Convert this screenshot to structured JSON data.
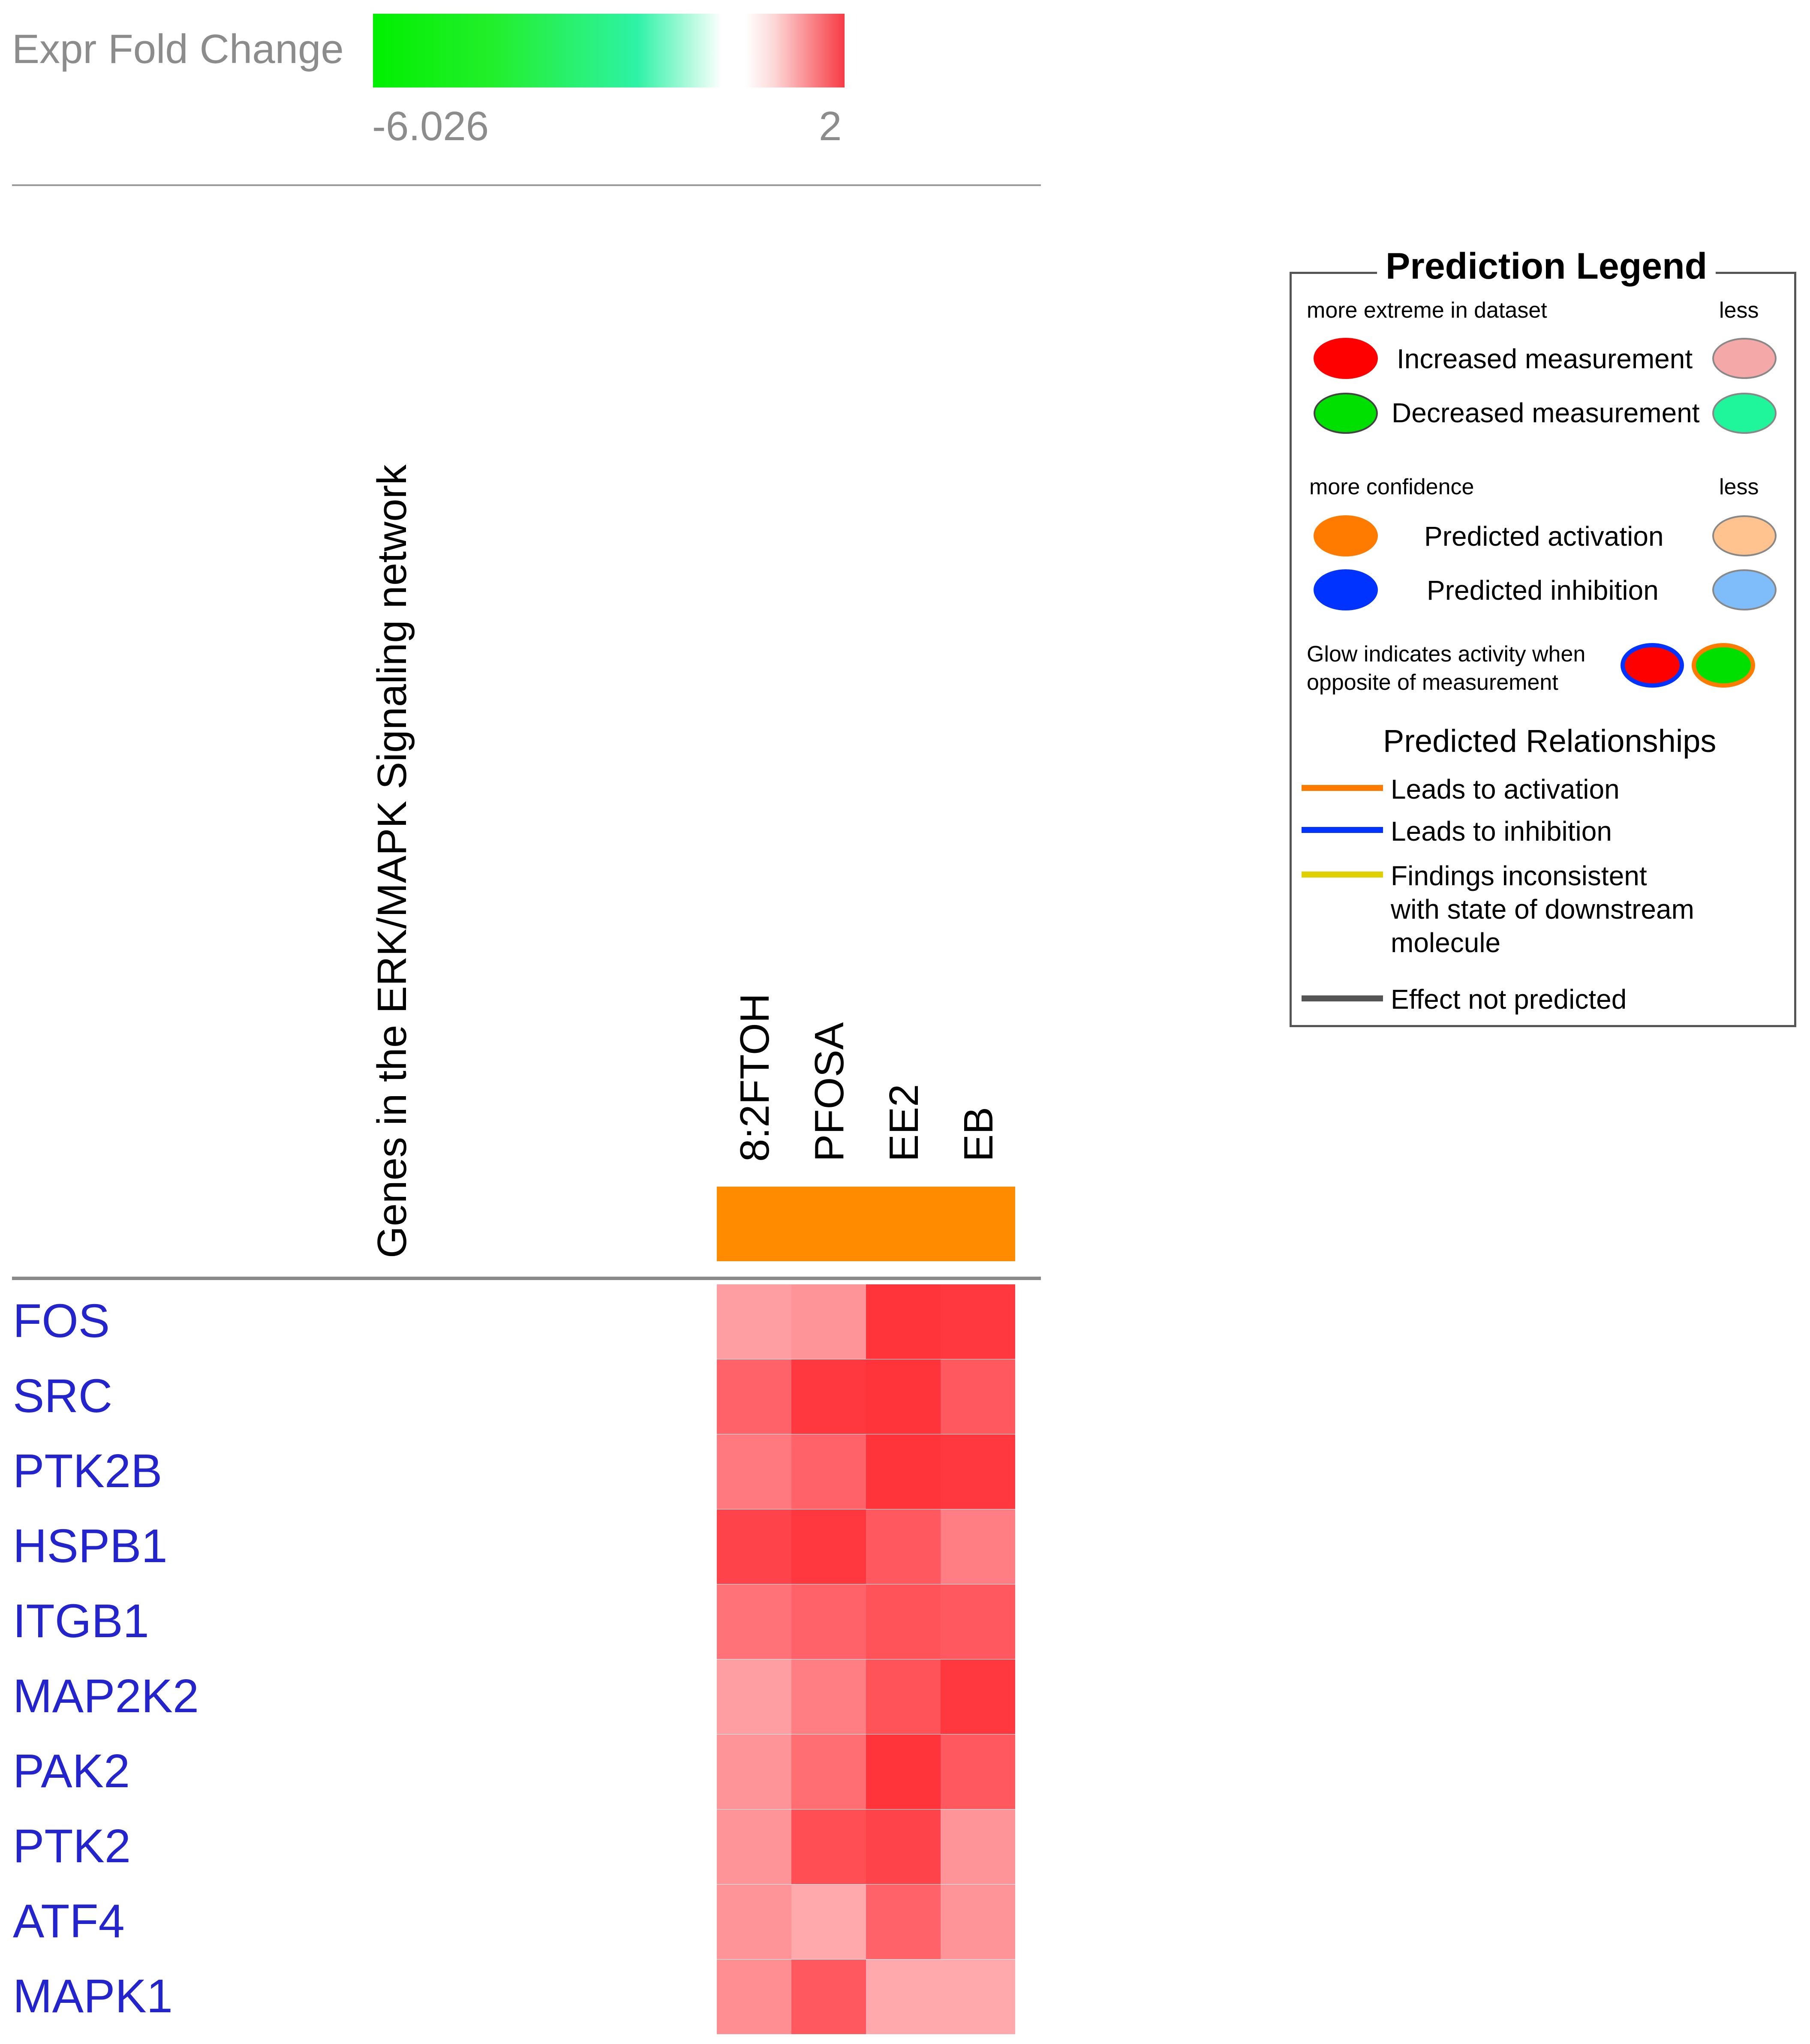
{
  "scale": {
    "title": "Expr Fold Change",
    "min_label": "-6.026",
    "max_label": "2",
    "min": -6.026,
    "max": 2,
    "colors": [
      "#00f000",
      "#2ef2a6",
      "#ffffff",
      "#f63b45"
    ]
  },
  "chart_data": {
    "type": "heatmap",
    "title": "Genes in the ERK/MAPK Signaling network",
    "columns": [
      "8:2FTOH",
      "PFOSA",
      "EE2",
      "EB"
    ],
    "column_prediction": "Predicted activation",
    "column_prediction_color": "#ff8c00",
    "rows": [
      "FOS",
      "SRC",
      "PTK2B",
      "HSPB1",
      "ITGB1",
      "MAP2K2",
      "PAK2",
      "PTK2",
      "ATF4",
      "MAPK1"
    ],
    "values": [
      [
        0.9,
        1.0,
        1.9,
        1.85
      ],
      [
        1.45,
        1.85,
        1.9,
        1.55
      ],
      [
        1.25,
        1.45,
        1.9,
        1.85
      ],
      [
        1.75,
        1.85,
        1.55,
        1.2
      ],
      [
        1.3,
        1.45,
        1.6,
        1.55
      ],
      [
        0.9,
        1.2,
        1.6,
        1.85
      ],
      [
        1.0,
        1.35,
        1.9,
        1.55
      ],
      [
        1.0,
        1.65,
        1.75,
        1.0
      ],
      [
        1.0,
        0.8,
        1.45,
        1.0
      ],
      [
        1.05,
        1.55,
        0.8,
        0.8
      ]
    ],
    "value_range": [
      -6.026,
      2
    ]
  },
  "legend": {
    "title": "Prediction Legend",
    "header1_left": "more extreme in dataset",
    "header1_right": "less",
    "increased": "Increased measurement",
    "decreased": "Decreased measurement",
    "header2_left": "more confidence",
    "header2_right": "less",
    "activation": "Predicted activation",
    "inhibition": "Predicted inhibition",
    "glow_line1": "Glow indicates activity when",
    "glow_line2": "opposite of measurement",
    "relationships_title": "Predicted Relationships",
    "rel_activation": "Leads to activation",
    "rel_inhibition": "Leads to inhibition",
    "rel_inconsistent_1": "Findings inconsistent",
    "rel_inconsistent_2": "with state of downstream",
    "rel_inconsistent_3": "molecule",
    "rel_not_predicted": "Effect not predicted",
    "colors": {
      "increased_strong": "#ff0000",
      "increased_light": "#f5a8a8",
      "decreased_strong": "#00e000",
      "decreased_light": "#1ff59a",
      "activation_strong": "#ff7b00",
      "activation_light": "#ffc390",
      "inhibition_strong": "#0033ff",
      "inhibition_light": "#7fbdfa",
      "line_activation": "#ff7b00",
      "line_inhibition": "#0033ff",
      "line_inconsistent": "#e0d000",
      "line_not_predicted": "#555555"
    }
  }
}
